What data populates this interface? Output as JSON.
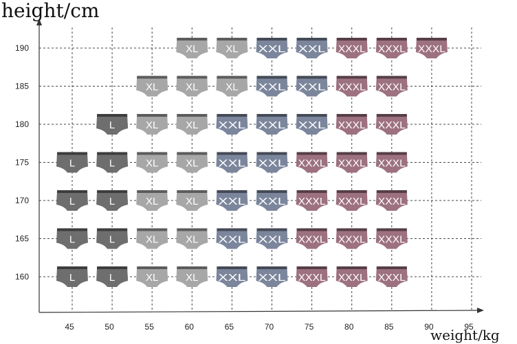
{
  "chart_data": {
    "type": "table",
    "title": "",
    "xlabel": "weight/kg",
    "ylabel": "height/cm",
    "x_ticks": [
      45,
      50,
      55,
      60,
      65,
      70,
      75,
      80,
      85,
      90,
      95
    ],
    "y_ticks": [
      160,
      165,
      170,
      175,
      180,
      185,
      190
    ],
    "grid": true,
    "size_colors": {
      "L": "#6e6e6e",
      "XL": "#a7a7a7",
      "XXL": "#7b869c",
      "XXXL": "#9d7180"
    },
    "cells": [
      {
        "weight": 60,
        "height": 190,
        "size": "XL"
      },
      {
        "weight": 65,
        "height": 190,
        "size": "XL"
      },
      {
        "weight": 70,
        "height": 190,
        "size": "XXL"
      },
      {
        "weight": 75,
        "height": 190,
        "size": "XXL"
      },
      {
        "weight": 80,
        "height": 190,
        "size": "XXXL"
      },
      {
        "weight": 85,
        "height": 190,
        "size": "XXXL"
      },
      {
        "weight": 90,
        "height": 190,
        "size": "XXXL"
      },
      {
        "weight": 55,
        "height": 185,
        "size": "XL"
      },
      {
        "weight": 60,
        "height": 185,
        "size": "XL"
      },
      {
        "weight": 65,
        "height": 185,
        "size": "XL"
      },
      {
        "weight": 70,
        "height": 185,
        "size": "XXL"
      },
      {
        "weight": 75,
        "height": 185,
        "size": "XXL"
      },
      {
        "weight": 80,
        "height": 185,
        "size": "XXXL"
      },
      {
        "weight": 85,
        "height": 185,
        "size": "XXXL"
      },
      {
        "weight": 50,
        "height": 180,
        "size": "L"
      },
      {
        "weight": 55,
        "height": 180,
        "size": "XL"
      },
      {
        "weight": 60,
        "height": 180,
        "size": "XL"
      },
      {
        "weight": 65,
        "height": 180,
        "size": "XXL"
      },
      {
        "weight": 70,
        "height": 180,
        "size": "XXL"
      },
      {
        "weight": 75,
        "height": 180,
        "size": "XXL"
      },
      {
        "weight": 80,
        "height": 180,
        "size": "XXXL"
      },
      {
        "weight": 85,
        "height": 180,
        "size": "XXXL"
      },
      {
        "weight": 45,
        "height": 175,
        "size": "L"
      },
      {
        "weight": 50,
        "height": 175,
        "size": "L"
      },
      {
        "weight": 55,
        "height": 175,
        "size": "XL"
      },
      {
        "weight": 60,
        "height": 175,
        "size": "XL"
      },
      {
        "weight": 65,
        "height": 175,
        "size": "XXL"
      },
      {
        "weight": 70,
        "height": 175,
        "size": "XXL"
      },
      {
        "weight": 75,
        "height": 175,
        "size": "XXXL"
      },
      {
        "weight": 80,
        "height": 175,
        "size": "XXXL"
      },
      {
        "weight": 85,
        "height": 175,
        "size": "XXXL"
      },
      {
        "weight": 45,
        "height": 170,
        "size": "L"
      },
      {
        "weight": 50,
        "height": 170,
        "size": "L"
      },
      {
        "weight": 55,
        "height": 170,
        "size": "XL"
      },
      {
        "weight": 60,
        "height": 170,
        "size": "XL"
      },
      {
        "weight": 65,
        "height": 170,
        "size": "XXL"
      },
      {
        "weight": 70,
        "height": 170,
        "size": "XXL"
      },
      {
        "weight": 75,
        "height": 170,
        "size": "XXXL"
      },
      {
        "weight": 80,
        "height": 170,
        "size": "XXXL"
      },
      {
        "weight": 85,
        "height": 170,
        "size": "XXXL"
      },
      {
        "weight": 45,
        "height": 165,
        "size": "L"
      },
      {
        "weight": 50,
        "height": 165,
        "size": "L"
      },
      {
        "weight": 55,
        "height": 165,
        "size": "XL"
      },
      {
        "weight": 60,
        "height": 165,
        "size": "XL"
      },
      {
        "weight": 65,
        "height": 165,
        "size": "XXL"
      },
      {
        "weight": 70,
        "height": 165,
        "size": "XXL"
      },
      {
        "weight": 75,
        "height": 165,
        "size": "XXXL"
      },
      {
        "weight": 80,
        "height": 165,
        "size": "XXXL"
      },
      {
        "weight": 85,
        "height": 165,
        "size": "XXXL"
      },
      {
        "weight": 45,
        "height": 160,
        "size": "L"
      },
      {
        "weight": 50,
        "height": 160,
        "size": "L"
      },
      {
        "weight": 55,
        "height": 160,
        "size": "XL"
      },
      {
        "weight": 60,
        "height": 160,
        "size": "XL"
      },
      {
        "weight": 65,
        "height": 160,
        "size": "XXL"
      },
      {
        "weight": 70,
        "height": 160,
        "size": "XXL"
      },
      {
        "weight": 75,
        "height": 160,
        "size": "XXXL"
      },
      {
        "weight": 80,
        "height": 160,
        "size": "XXXL"
      },
      {
        "weight": 85,
        "height": 160,
        "size": "XXXL"
      }
    ]
  }
}
